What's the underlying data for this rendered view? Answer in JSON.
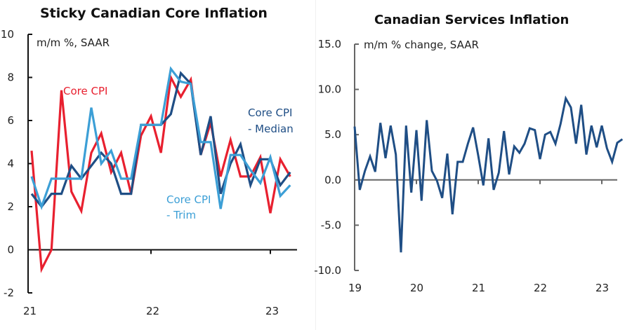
{
  "colors": {
    "core_cpi": "#e8202f",
    "median": "#1f4e85",
    "trim": "#3c9fd6",
    "services": "#1f4e85",
    "axis_left": "#111111",
    "axis_right": "#666666"
  },
  "chart_data": [
    {
      "type": "line",
      "title": "Sticky Canadian Core Inflation",
      "unit_label": "m/m %, SAAR",
      "xlabel": "",
      "ylabel": "",
      "ylim": [
        -2,
        10
      ],
      "yticks": [
        -2,
        0,
        2,
        4,
        6,
        8,
        10
      ],
      "ytick_labels": [
        "-2",
        "0",
        "2",
        "4",
        "6",
        "8",
        "10"
      ],
      "x_start": "2021-01",
      "xticks": [
        "21",
        "22",
        "23"
      ],
      "grid": false,
      "series": [
        {
          "name": "Core CPI",
          "label_lines": [
            "Core CPI"
          ],
          "color_key": "core_cpi",
          "values": [
            4.6,
            -0.9,
            0.0,
            7.4,
            2.7,
            1.8,
            4.5,
            5.4,
            3.6,
            4.5,
            2.6,
            5.3,
            6.2,
            4.5,
            8.0,
            7.1,
            7.9,
            4.4,
            5.9,
            3.4,
            5.1,
            3.4,
            3.4,
            4.3,
            1.7,
            4.2,
            3.4
          ]
        },
        {
          "name": "Core CPI - Median",
          "label_lines": [
            "Core CPI",
            "- Median"
          ],
          "color_key": "median",
          "values": [
            2.6,
            2.0,
            2.6,
            2.6,
            3.9,
            3.3,
            3.9,
            4.5,
            4.0,
            2.6,
            2.6,
            5.8,
            5.8,
            5.8,
            6.3,
            8.2,
            7.7,
            4.4,
            6.2,
            2.6,
            4.0,
            4.9,
            3.0,
            4.2,
            4.2,
            3.0,
            3.6
          ]
        },
        {
          "name": "Core CPI - Trim",
          "label_lines": [
            "Core CPI",
            "- Trim"
          ],
          "color_key": "trim",
          "values": [
            3.4,
            2.0,
            3.3,
            3.3,
            3.3,
            3.3,
            6.6,
            4.0,
            4.6,
            3.3,
            3.3,
            5.8,
            5.8,
            5.8,
            8.4,
            7.8,
            7.7,
            5.0,
            5.0,
            1.9,
            4.4,
            4.4,
            3.7,
            3.1,
            4.3,
            2.5,
            3.0
          ]
        }
      ]
    },
    {
      "type": "line",
      "title": "Canadian Services Inflation",
      "unit_label": "m/m % change, SAAR",
      "xlabel": "",
      "ylabel": "",
      "ylim": [
        -10,
        15
      ],
      "yticks": [
        -10,
        -5,
        0,
        5,
        10,
        15
      ],
      "ytick_labels": [
        "-10.0",
        "-5.0",
        "0.0",
        "5.0",
        "10.0",
        "15.0"
      ],
      "x_start": "2019-01",
      "xticks": [
        "19",
        "20",
        "21",
        "22",
        "23"
      ],
      "grid": false,
      "series": [
        {
          "name": "Services",
          "color_key": "services",
          "values": [
            5.9,
            -1.1,
            1.0,
            2.6,
            0.9,
            6.3,
            2.4,
            6.0,
            2.8,
            -8.0,
            6.0,
            -1.4,
            5.5,
            -2.3,
            6.6,
            1.0,
            -0.1,
            -2.0,
            2.9,
            -3.8,
            2.0,
            2.0,
            4.0,
            5.8,
            2.7,
            -0.6,
            4.6,
            -1.1,
            0.8,
            5.4,
            0.6,
            3.7,
            3.0,
            4.0,
            5.7,
            5.5,
            2.3,
            5.0,
            5.3,
            4.0,
            6.2,
            9.0,
            8.0,
            4.0,
            8.3,
            2.8,
            6.0,
            3.6,
            6.0,
            3.5,
            2.0,
            4.1,
            4.5
          ]
        }
      ]
    }
  ]
}
